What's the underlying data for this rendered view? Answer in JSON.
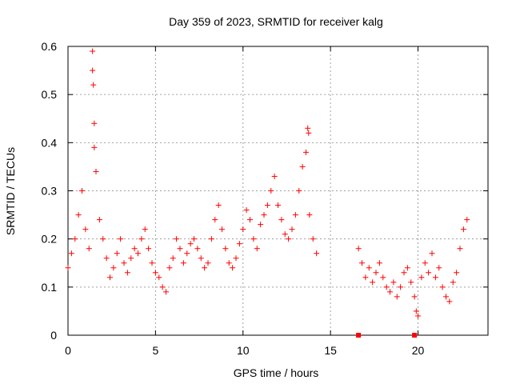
{
  "chart_data": {
    "type": "scatter",
    "title": "Day 359 of 2023, SRMTID for receiver kalg",
    "xlabel": "GPS time / hours",
    "ylabel": "SRMTID / TECUs",
    "xlim": [
      0,
      24
    ],
    "ylim": [
      0,
      0.6
    ],
    "xticks": [
      0,
      5,
      10,
      15,
      20
    ],
    "yticks": [
      0,
      0.1,
      0.2,
      0.3,
      0.4,
      0.5,
      0.6
    ],
    "xtick_labels": [
      "0",
      "5",
      "10",
      "15",
      "20"
    ],
    "ytick_labels": [
      "0",
      "0.1",
      "0.2",
      "0.3",
      "0.4",
      "0.5",
      "0.6"
    ],
    "grid": true,
    "marker": "plus",
    "series_color": "#ff0000",
    "series": [
      {
        "name": "SRMTID",
        "x": [
          0.0,
          0.2,
          0.4,
          0.6,
          0.8,
          1.0,
          1.2,
          1.4,
          1.4,
          1.45,
          1.5,
          1.5,
          1.6,
          1.8,
          2.0,
          2.2,
          2.4,
          2.6,
          2.8,
          3.0,
          3.2,
          3.4,
          3.6,
          3.8,
          4.0,
          4.2,
          4.4,
          4.6,
          4.8,
          5.0,
          5.2,
          5.4,
          5.6,
          5.8,
          6.0,
          6.2,
          6.4,
          6.6,
          6.8,
          7.0,
          7.2,
          7.4,
          7.6,
          7.8,
          8.0,
          8.2,
          8.4,
          8.6,
          8.8,
          9.0,
          9.2,
          9.4,
          9.6,
          9.8,
          10.0,
          10.2,
          10.4,
          10.6,
          10.8,
          11.0,
          11.2,
          11.4,
          11.6,
          11.8,
          12.0,
          12.2,
          12.4,
          12.6,
          12.8,
          13.0,
          13.2,
          13.4,
          13.6,
          13.7,
          13.75,
          13.8,
          14.0,
          14.2,
          16.6,
          16.8,
          17.0,
          17.2,
          17.4,
          17.6,
          17.8,
          18.0,
          18.2,
          18.4,
          18.6,
          18.8,
          19.0,
          19.2,
          19.4,
          19.6,
          19.8,
          19.9,
          20.0,
          20.2,
          20.4,
          20.6,
          20.8,
          21.0,
          21.2,
          21.4,
          21.6,
          21.8,
          22.0,
          22.2,
          22.4,
          22.6,
          22.8
        ],
        "y": [
          0.14,
          0.17,
          0.2,
          0.25,
          0.3,
          0.22,
          0.18,
          0.59,
          0.55,
          0.52,
          0.44,
          0.39,
          0.34,
          0.24,
          0.2,
          0.16,
          0.12,
          0.14,
          0.17,
          0.2,
          0.15,
          0.13,
          0.16,
          0.18,
          0.17,
          0.2,
          0.22,
          0.18,
          0.15,
          0.13,
          0.12,
          0.1,
          0.09,
          0.14,
          0.16,
          0.2,
          0.18,
          0.15,
          0.17,
          0.19,
          0.2,
          0.18,
          0.16,
          0.14,
          0.15,
          0.2,
          0.24,
          0.27,
          0.22,
          0.18,
          0.15,
          0.14,
          0.16,
          0.19,
          0.22,
          0.26,
          0.24,
          0.2,
          0.18,
          0.23,
          0.25,
          0.27,
          0.3,
          0.33,
          0.27,
          0.24,
          0.21,
          0.2,
          0.22,
          0.25,
          0.3,
          0.35,
          0.38,
          0.43,
          0.42,
          0.25,
          0.2,
          0.17,
          0.18,
          0.15,
          0.12,
          0.14,
          0.11,
          0.13,
          0.15,
          0.12,
          0.1,
          0.09,
          0.11,
          0.08,
          0.1,
          0.13,
          0.14,
          0.11,
          0.08,
          0.05,
          0.04,
          0.12,
          0.15,
          0.13,
          0.17,
          0.12,
          0.14,
          0.1,
          0.08,
          0.07,
          0.11,
          0.13,
          0.18,
          0.22,
          0.24
        ]
      }
    ],
    "markers_at_zero": [
      16.6,
      19.8
    ]
  }
}
